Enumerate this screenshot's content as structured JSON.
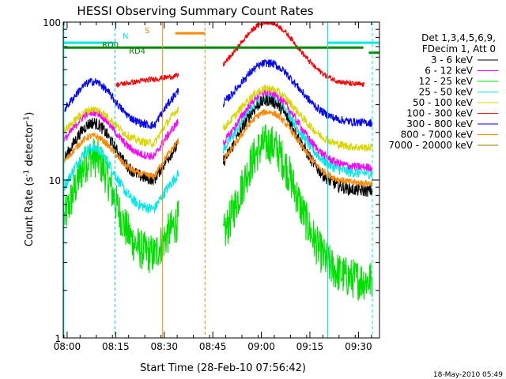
{
  "chart_data": {
    "type": "line",
    "title": "HESSI Observing Summary Count Rates",
    "xlabel": "Start Time (28-Feb-10 07:56:42)",
    "ylabel_parts": [
      "Count Rate (s",
      "-1",
      " detector",
      "-1",
      ")"
    ],
    "ylabel": "Count Rate (s^-1 detector^-1)",
    "yscale": "log",
    "ylim": [
      1,
      100
    ],
    "xlim_minutes": [
      -1.2,
      96.5
    ],
    "x_ticks": [
      {
        "m": 0,
        "label": "08:00"
      },
      {
        "m": 15,
        "label": "08:15"
      },
      {
        "m": 30,
        "label": "08:30"
      },
      {
        "m": 45,
        "label": "08:45"
      },
      {
        "m": 60,
        "label": "09:00"
      },
      {
        "m": 75,
        "label": "09:15"
      },
      {
        "m": 90,
        "label": "09:30"
      }
    ],
    "y_ticks": [
      {
        "v": 1,
        "label": "1"
      },
      {
        "v": 10,
        "label": "10"
      },
      {
        "v": 100,
        "label": "100"
      }
    ],
    "legend_title": [
      "Det 1,3,4,5,6,9,",
      "FDecim 1, Att 0"
    ],
    "legend_placement": "right",
    "series": [
      {
        "name": "3 - 6 keV",
        "color": "#000000",
        "day": [
          32,
          8.5
        ],
        "night": [
          23,
          10
        ],
        "noise": 0.09
      },
      {
        "name": "6 - 12 keV",
        "color": "#ff00ff",
        "day": [
          36,
          12
        ],
        "night": [
          27,
          14
        ],
        "noise": 0.06
      },
      {
        "name": "12 - 25 keV",
        "color": "#00e000",
        "day": [
          17,
          2.3
        ],
        "night": [
          14,
          3.3
        ],
        "noise": 0.3
      },
      {
        "name": "25 - 50 keV",
        "color": "#00e8e8",
        "day": [
          33,
          11
        ],
        "night": [
          16,
          6.5
        ],
        "noise": 0.08
      },
      {
        "name": "50 - 100 keV",
        "color": "#d8d800",
        "day": [
          38,
          16
        ],
        "night": [
          28,
          17
        ],
        "noise": 0.06
      },
      {
        "name": "100 - 300 keV",
        "color": "#ff0000",
        "day": [
          100,
          40
        ],
        "night": [
          50,
          40
        ],
        "noise": 0.04
      },
      {
        "name": "300 - 800 keV",
        "color": "#0000ff",
        "day": [
          55,
          23
        ],
        "night": [
          42,
          22
        ],
        "noise": 0.06
      },
      {
        "name": "800 - 7000 keV",
        "color": "#ff8800",
        "day": [
          27,
          9.5
        ],
        "night": [
          19,
          10.5
        ],
        "noise": 0.05
      },
      {
        "name": "7000 - 20000 keV",
        "color": "#a07000",
        "day": [],
        "night": [],
        "noise": 0
      }
    ],
    "data_gaps_minutes": [
      [
        -1.2,
        -0.8
      ],
      [
        34.5,
        48.2
      ],
      [
        94.3,
        96.5
      ]
    ],
    "bars": [
      {
        "label": "N",
        "color": "#00e8e8",
        "label_color": "#00e8e8",
        "segments": [
          [
            -1.2,
            14.8
          ],
          [
            80.5,
            96.5
          ]
        ],
        "level": 74
      },
      {
        "label": "S",
        "color": "#ff8800",
        "label_color": "#ff8800",
        "segments": [
          [
            33.4,
            42.6
          ]
        ],
        "level": 85
      },
      {
        "label": "RD0",
        "color": "#008800",
        "label_color": "#008800",
        "segments": [
          [
            -1.2,
            91.5
          ]
        ],
        "level": 69
      },
      {
        "label": "RD4",
        "color": "#008800",
        "label_color": "#008800",
        "segments": [
          [
            93.2,
            96.5
          ]
        ],
        "level": 64
      }
    ],
    "vlines": [
      {
        "m": -1.0,
        "color": "#00e8e8",
        "dash": false
      },
      {
        "m": 14.8,
        "color": "#00e8e8",
        "dash": true
      },
      {
        "m": 29.5,
        "color": "#ff8800",
        "dash": false
      },
      {
        "m": 42.6,
        "color": "#ff8800",
        "dash": true
      },
      {
        "m": 80.5,
        "color": "#00e8e8",
        "dash": false
      },
      {
        "m": 94.3,
        "color": "#00e8e8",
        "dash": true
      }
    ]
  },
  "timestamp": "18-May-2010 05:49"
}
